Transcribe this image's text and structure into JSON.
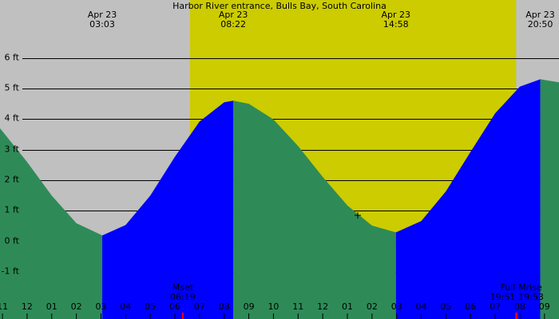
{
  "chart_data": {
    "type": "tide",
    "title": "Harbor River entrance, Bulls Bay, South Carolina",
    "background_color": "#c0c0c0",
    "daylight_color": "#cccc00",
    "daylight": [
      6.61,
      19.85
    ],
    "falling_color": "#2e8b57",
    "rising_color": "#0000ff",
    "x": [
      -1.1,
      -1,
      0,
      1,
      2,
      3.05,
      4,
      5,
      6,
      7,
      8,
      8.37,
      9,
      10,
      11,
      12,
      13,
      14,
      14.97,
      16,
      17,
      18,
      19,
      20,
      20.83,
      21.59
    ],
    "values": [
      3.7,
      3.6,
      2.6,
      1.5,
      0.6,
      0.2,
      0.54,
      1.5,
      2.77,
      3.92,
      4.55,
      4.6,
      4.5,
      3.99,
      3.12,
      2.11,
      1.18,
      0.52,
      0.3,
      0.67,
      1.64,
      2.93,
      4.19,
      5.06,
      5.3,
      5.2
    ],
    "xlim": [
      -1.1,
      21.59
    ],
    "ylim": [
      -2.53,
      7.89
    ],
    "yticks": [
      {
        "value": 6,
        "label": "6 ft"
      },
      {
        "value": 5,
        "label": "5 ft"
      },
      {
        "value": 4,
        "label": "4 ft"
      },
      {
        "value": 3,
        "label": "3 ft"
      },
      {
        "value": 2,
        "label": "2 ft"
      },
      {
        "value": 1,
        "label": "1 ft"
      },
      {
        "value": 0,
        "label": "0 ft"
      },
      {
        "value": -1,
        "label": "-1 ft"
      }
    ],
    "xticks": [
      {
        "value": -1,
        "label": "11"
      },
      {
        "value": 0,
        "label": "12"
      },
      {
        "value": 1,
        "label": "01"
      },
      {
        "value": 2,
        "label": "02"
      },
      {
        "value": 3,
        "label": "03"
      },
      {
        "value": 4,
        "label": "04"
      },
      {
        "value": 5,
        "label": "05"
      },
      {
        "value": 6,
        "label": "06"
      },
      {
        "value": 7,
        "label": "07"
      },
      {
        "value": 8,
        "label": "08"
      },
      {
        "value": 9,
        "label": "09"
      },
      {
        "value": 10,
        "label": "10"
      },
      {
        "value": 11,
        "label": "11"
      },
      {
        "value": 12,
        "label": "12"
      },
      {
        "value": 13,
        "label": "01"
      },
      {
        "value": 14,
        "label": "02"
      },
      {
        "value": 15,
        "label": "03"
      },
      {
        "value": 16,
        "label": "04"
      },
      {
        "value": 17,
        "label": "05"
      },
      {
        "value": 18,
        "label": "06"
      },
      {
        "value": 19,
        "label": "07"
      },
      {
        "value": 20,
        "label": "08"
      },
      {
        "value": 21,
        "label": "09"
      }
    ],
    "extremes": [
      {
        "date": "Apr 23",
        "time": "03:03",
        "x": 3.05
      },
      {
        "date": "Apr 23",
        "time": "08:22",
        "x": 8.37
      },
      {
        "date": "Apr 23",
        "time": "14:58",
        "x": 14.97
      },
      {
        "date": "Apr 23",
        "time": "20:50",
        "x": 20.83
      }
    ],
    "events": [
      {
        "label": "Mset",
        "time": "06:19",
        "x": 6.32,
        "color": "#ff0000"
      },
      {
        "label": "Full",
        "time": "19:51",
        "x": 19.85,
        "color": "#ff0000"
      },
      {
        "label": "Mrise",
        "time": "19:53",
        "x": 19.88,
        "color": "#ff0000"
      }
    ]
  }
}
